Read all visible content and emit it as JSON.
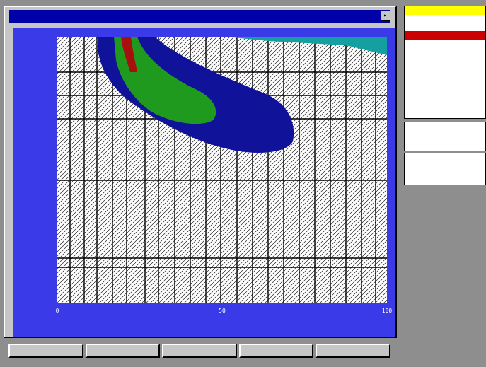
{
  "window": {
    "title": "",
    "title_button": "▸"
  },
  "colors": {
    "plot_background": "#3a3ae8",
    "contour_navy": "#10129a",
    "contour_green": "#1f9a1f",
    "contour_red": "#a81010",
    "contour_teal": "#14a0a0",
    "menu_header": "#ffff00",
    "menu_selected": "#cc0000"
  },
  "chart_data": {
    "type": "heatmap",
    "x_tick_labels": [
      "0",
      "50",
      "100"
    ],
    "y_tick_labels": [],
    "xlabel": "",
    "ylabel": "",
    "levels": [
      "navy",
      "green",
      "red",
      "teal"
    ]
  },
  "side_menu": {
    "header": "",
    "items": [
      {
        "label": "",
        "style": "normal"
      },
      {
        "label": "",
        "style": "red"
      },
      {
        "label": "",
        "style": "selected"
      },
      {
        "label": "",
        "style": "normal"
      },
      {
        "label": "",
        "style": "normal"
      },
      {
        "label": "",
        "style": "red"
      },
      {
        "label": "",
        "style": "normal"
      },
      {
        "label": "",
        "style": "red"
      },
      {
        "label": "",
        "style": "normal"
      },
      {
        "label": "",
        "style": "red"
      },
      {
        "label": "",
        "style": "normal"
      }
    ]
  },
  "coordinates": {
    "title": "",
    "x_line": "",
    "y_line": ""
  },
  "stats": {
    "lines": [
      "",
      "",
      ""
    ]
  },
  "function_keys": [
    {
      "label": ""
    },
    {
      "label": ""
    },
    {
      "label": ""
    },
    {
      "label": ""
    },
    {
      "label": ""
    }
  ],
  "status_text": ""
}
